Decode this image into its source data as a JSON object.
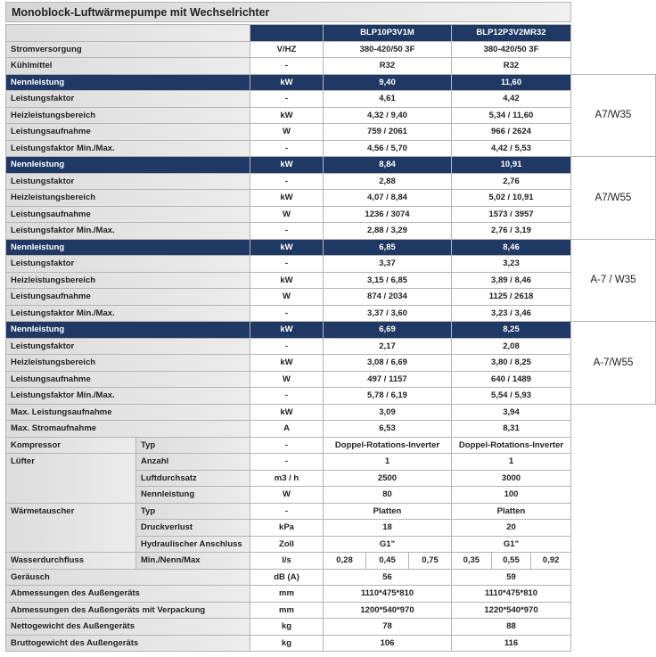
{
  "title": "Monoblock-Luftwärmepumpe mit Wechselrichter",
  "models": [
    "BLP10P3V1M",
    "BLP12P3V2MR32"
  ],
  "top_rows": [
    {
      "label": "Stromversorgung",
      "unit": "V/HZ",
      "values": [
        "380-420/50 3F",
        "380-420/50 3F"
      ]
    },
    {
      "label": "Kühlmittel",
      "unit": "-",
      "values": [
        "R32",
        "R32"
      ]
    }
  ],
  "performance": [
    {
      "condition": "A7/W35",
      "rows": [
        {
          "label": "Nennleistung",
          "unit": "kW",
          "values": [
            "9,40",
            "11,60"
          ]
        },
        {
          "label": "Leistungsfaktor",
          "unit": "-",
          "values": [
            "4,61",
            "4,42"
          ]
        },
        {
          "label": "Heizleistungsbereich",
          "unit": "kW",
          "values": [
            "4,32 / 9,40",
            "5,34 / 11,60"
          ]
        },
        {
          "label": "Leistungsaufnahme",
          "unit": "W",
          "values": [
            "759 / 2061",
            "966 / 2624"
          ]
        },
        {
          "label": "Leistungsfaktor Min./Max.",
          "unit": "-",
          "values": [
            "4,56 / 5,70",
            "4,42 / 5,53"
          ]
        }
      ]
    },
    {
      "condition": "A7/W55",
      "rows": [
        {
          "label": "Nennleistung",
          "unit": "kW",
          "values": [
            "8,84",
            "10,91"
          ]
        },
        {
          "label": "Leistungsfaktor",
          "unit": "-",
          "values": [
            "2,88",
            "2,76"
          ]
        },
        {
          "label": "Heizleistungsbereich",
          "unit": "kW",
          "values": [
            "4,07 / 8,84",
            "5,02 / 10,91"
          ]
        },
        {
          "label": "Leistungsaufnahme",
          "unit": "W",
          "values": [
            "1236 / 3074",
            "1573 / 3957"
          ]
        },
        {
          "label": "Leistungsfaktor Min./Max.",
          "unit": "-",
          "values": [
            "2,88 / 3,29",
            "2,76 / 3,19"
          ]
        }
      ]
    },
    {
      "condition": "A-7 / W35",
      "rows": [
        {
          "label": "Nennleistung",
          "unit": "kW",
          "values": [
            "6,85",
            "8,46"
          ]
        },
        {
          "label": "Leistungsfaktor",
          "unit": "-",
          "values": [
            "3,37",
            "3,23"
          ]
        },
        {
          "label": "Heizleistungsbereich",
          "unit": "kW",
          "values": [
            "3,15 / 6,85",
            "3,89 / 8,46"
          ]
        },
        {
          "label": "Leistungsaufnahme",
          "unit": "W",
          "values": [
            "874 / 2034",
            "1125 / 2618"
          ]
        },
        {
          "label": "Leistungsfaktor Min./Max.",
          "unit": "-",
          "values": [
            "3,37 / 3,60",
            "3,23 / 3,46"
          ]
        }
      ]
    },
    {
      "condition": "A-7/W55",
      "rows": [
        {
          "label": "Nennleistung",
          "unit": "kW",
          "values": [
            "6,69",
            "8,25"
          ]
        },
        {
          "label": "Leistungsfaktor",
          "unit": "-",
          "values": [
            "2,17",
            "2,08"
          ]
        },
        {
          "label": "Heizleistungsbereich",
          "unit": "kW",
          "values": [
            "3,08 / 6,69",
            "3,80 / 8,25"
          ]
        },
        {
          "label": "Leistungsaufnahme",
          "unit": "W",
          "values": [
            "497 / 1157",
            "640 / 1489"
          ]
        },
        {
          "label": "Leistungsfaktor Min./Max.",
          "unit": "-",
          "values": [
            "5,78 / 6,19",
            "5,54 / 5,93"
          ]
        }
      ]
    }
  ],
  "max_rows": [
    {
      "label": "Max. Leistungsaufnahme",
      "unit": "kW",
      "values": [
        "3,09",
        "3,94"
      ]
    },
    {
      "label": "Max. Stromaufnahme",
      "unit": "A",
      "values": [
        "6,53",
        "8,31"
      ]
    }
  ],
  "components": [
    {
      "label": "Kompressor",
      "rows": [
        {
          "sub": "Typ",
          "unit": "-",
          "values": [
            "Doppel-Rotations-Inverter",
            "Doppel-Rotations-Inverter"
          ]
        }
      ]
    },
    {
      "label": "Lüfter",
      "rows": [
        {
          "sub": "Anzahl",
          "unit": "-",
          "values": [
            "1",
            "1"
          ]
        },
        {
          "sub": "Luftdurchsatz",
          "unit": "m3 / h",
          "values": [
            "2500",
            "3000"
          ]
        },
        {
          "sub": "Nennleistung",
          "unit": "W",
          "values": [
            "80",
            "100"
          ]
        }
      ]
    },
    {
      "label": "Wärmetauscher",
      "rows": [
        {
          "sub": "Typ",
          "unit": "-",
          "values": [
            "Platten",
            "Platten"
          ]
        },
        {
          "sub": "Druckverlust",
          "unit": "kPa",
          "values": [
            "18",
            "20"
          ]
        },
        {
          "sub": "Hydraulischer Anschluss",
          "unit": "Zoll",
          "values": [
            "G1\"",
            "G1\""
          ]
        }
      ]
    },
    {
      "label": "Wasserdurchfluss",
      "rows": [
        {
          "sub": "Min./Nenn/Max",
          "unit": "l/s",
          "values": [
            [
              "0,28",
              "0,45",
              "0,75"
            ],
            [
              "0,35",
              "0,55",
              "0,92"
            ]
          ]
        }
      ]
    }
  ],
  "general_rows": [
    {
      "label": "Geräusch",
      "unit": "dB (A)",
      "values": [
        "56",
        "59"
      ]
    },
    {
      "label": "Abmessungen des Außengeräts",
      "unit": "mm",
      "values": [
        "1110*475*810",
        "1110*475*810"
      ]
    },
    {
      "label": "Abmessungen des Außengeräts mit Verpackung",
      "unit": "mm",
      "values": [
        "1200*540*970",
        "1220*540*970"
      ]
    },
    {
      "label": "Nettogewicht des Außengeräts",
      "unit": "kg",
      "values": [
        "78",
        "88"
      ]
    },
    {
      "label": "Bruttogewicht des Außengeräts",
      "unit": "kg",
      "values": [
        "106",
        "116"
      ]
    }
  ]
}
